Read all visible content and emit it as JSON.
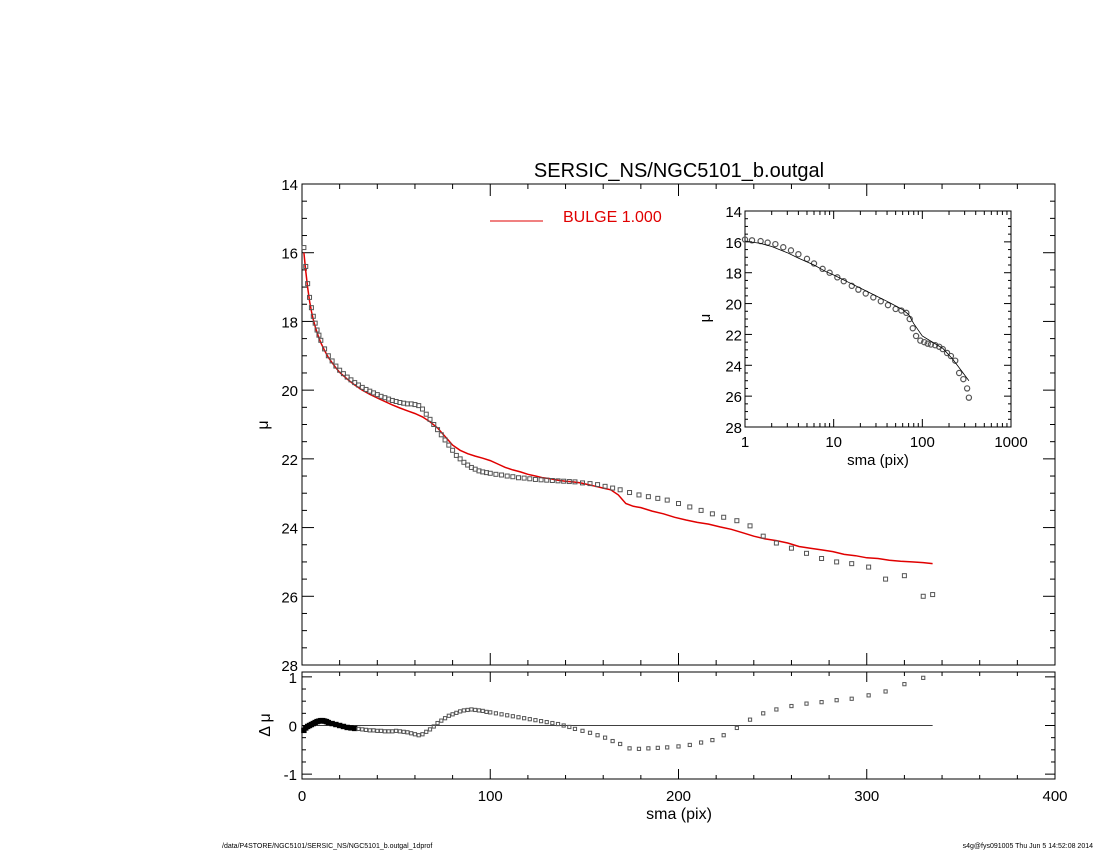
{
  "footer": {
    "left": "/data/P4STORE/NGC5101/SERSIC_NS/NGC5101_b.outgal_1dprof",
    "right": "s4g@fys091005  Thu Jun  5 14:52:08 2014"
  },
  "colors": {
    "model": "#e00000",
    "points": "#555555",
    "axes": "#000000"
  },
  "chart_data": [
    {
      "id": "main",
      "type": "scatter",
      "title": "SERSIC_NS/NGC5101_b.outgal",
      "xlabel": "",
      "ylabel": "μ",
      "xlim": [
        0,
        400
      ],
      "ylim": [
        28,
        14
      ],
      "y_inverted": true,
      "xticks": [
        0,
        100,
        200,
        300,
        400
      ],
      "yticks": [
        14,
        16,
        18,
        20,
        22,
        24,
        26,
        28
      ],
      "ytick_labels": [
        "14",
        "16",
        "18",
        "20",
        "22",
        "24",
        "26",
        "28"
      ],
      "legend": {
        "position": "top-center",
        "entries": [
          {
            "name": "BULGE  1.000",
            "color": "#e00000"
          }
        ]
      },
      "series": [
        {
          "name": "data",
          "style": "open-squares",
          "x": [
            1,
            2,
            3,
            4,
            5,
            6,
            7,
            8,
            9,
            10,
            12,
            14,
            16,
            18,
            20,
            22,
            24,
            26,
            28,
            30,
            32,
            34,
            36,
            38,
            40,
            42,
            44,
            46,
            48,
            50,
            52,
            54,
            56,
            58,
            60,
            62,
            64,
            66,
            68,
            70,
            72,
            74,
            76,
            78,
            80,
            82,
            84,
            86,
            88,
            90,
            92,
            94,
            96,
            98,
            100,
            103,
            106,
            109,
            112,
            115,
            118,
            121,
            124,
            127,
            130,
            133,
            136,
            139,
            142,
            145,
            149,
            153,
            157,
            161,
            165,
            169,
            174,
            179,
            184,
            189,
            194,
            200,
            206,
            212,
            218,
            224,
            231,
            238,
            245,
            252,
            260,
            268,
            276,
            284,
            292,
            301,
            310,
            320,
            330,
            335
          ],
          "y": [
            15.85,
            16.4,
            16.9,
            17.3,
            17.6,
            17.85,
            18.05,
            18.25,
            18.4,
            18.55,
            18.8,
            19.0,
            19.15,
            19.3,
            19.42,
            19.52,
            19.62,
            19.7,
            19.78,
            19.85,
            19.92,
            19.98,
            20.03,
            20.08,
            20.13,
            20.18,
            20.22,
            20.26,
            20.3,
            20.33,
            20.36,
            20.38,
            20.4,
            20.4,
            20.42,
            20.45,
            20.55,
            20.7,
            20.85,
            21.0,
            21.15,
            21.3,
            21.45,
            21.6,
            21.75,
            21.9,
            22.0,
            22.1,
            22.18,
            22.25,
            22.3,
            22.35,
            22.38,
            22.4,
            22.42,
            22.45,
            22.47,
            22.5,
            22.52,
            22.55,
            22.56,
            22.58,
            22.6,
            22.61,
            22.62,
            22.63,
            22.64,
            22.65,
            22.66,
            22.67,
            22.7,
            22.72,
            22.75,
            22.8,
            22.85,
            22.9,
            22.98,
            23.05,
            23.1,
            23.15,
            23.2,
            23.3,
            23.4,
            23.5,
            23.6,
            23.7,
            23.8,
            23.95,
            24.25,
            24.45,
            24.6,
            24.75,
            24.9,
            25.0,
            25.05,
            25.15,
            25.5,
            25.4,
            26.0,
            25.95
          ],
          "note": ""
        },
        {
          "name": "BULGE  1.000",
          "style": "line",
          "color": "#e00000",
          "x": [
            1,
            2,
            3,
            4,
            5,
            6,
            7,
            8,
            9,
            10,
            12,
            14,
            16,
            18,
            20,
            24,
            28,
            32,
            36,
            40,
            44,
            48,
            52,
            56,
            60,
            64,
            68,
            72,
            76,
            80,
            84,
            88,
            92,
            96,
            100,
            104,
            108,
            112,
            116,
            120,
            124,
            128,
            132,
            136,
            140,
            144,
            148,
            152,
            156,
            160,
            164,
            168,
            172,
            176,
            180,
            186,
            192,
            198,
            204,
            210,
            216,
            222,
            228,
            234,
            240,
            246,
            252,
            258,
            264,
            270,
            276,
            282,
            288,
            294,
            300,
            306,
            312,
            318,
            324,
            330,
            335
          ],
          "y": [
            16.0,
            16.55,
            17.0,
            17.4,
            17.7,
            17.95,
            18.15,
            18.33,
            18.48,
            18.62,
            18.85,
            19.05,
            19.2,
            19.35,
            19.48,
            19.68,
            19.85,
            20.0,
            20.12,
            20.23,
            20.33,
            20.43,
            20.52,
            20.6,
            20.68,
            20.78,
            20.92,
            21.1,
            21.35,
            21.6,
            21.75,
            21.85,
            21.92,
            21.98,
            22.05,
            22.15,
            22.25,
            22.32,
            22.38,
            22.45,
            22.5,
            22.55,
            22.58,
            22.62,
            22.65,
            22.67,
            22.7,
            22.75,
            22.8,
            22.85,
            22.9,
            23.05,
            23.3,
            23.38,
            23.42,
            23.52,
            23.6,
            23.7,
            23.78,
            23.85,
            23.9,
            23.98,
            24.05,
            24.15,
            24.25,
            24.33,
            24.38,
            24.45,
            24.55,
            24.6,
            24.65,
            24.7,
            24.78,
            24.82,
            24.88,
            24.9,
            24.95,
            24.98,
            25.0,
            25.02,
            25.05
          ]
        }
      ]
    },
    {
      "id": "residual",
      "type": "scatter",
      "title": "",
      "xlabel": "sma (pix)",
      "ylabel": "Δ μ",
      "xlim": [
        0,
        400
      ],
      "ylim": [
        -1.1,
        1.1
      ],
      "xticks": [
        0,
        100,
        200,
        300,
        400
      ],
      "xtick_labels": [
        "0",
        "100",
        "200",
        "300",
        "400"
      ],
      "yticks": [
        1,
        0,
        -1
      ],
      "ytick_labels": [
        "1",
        "0",
        "-1"
      ],
      "zero_line": {
        "y": 0,
        "x_end": 335
      },
      "series": [
        {
          "name": "residual",
          "style": "open-squares",
          "x": [
            1,
            2,
            3,
            4,
            5,
            6,
            7,
            8,
            9,
            10,
            11,
            12,
            13,
            14,
            16,
            18,
            20,
            22,
            24,
            26,
            28,
            30,
            32,
            34,
            36,
            38,
            40,
            42,
            44,
            46,
            48,
            50,
            52,
            54,
            56,
            58,
            60,
            62,
            64,
            66,
            68,
            70,
            72,
            74,
            76,
            78,
            80,
            82,
            84,
            86,
            88,
            90,
            92,
            94,
            96,
            98,
            100,
            103,
            106,
            109,
            112,
            115,
            118,
            121,
            124,
            127,
            130,
            133,
            136,
            139,
            142,
            145,
            149,
            153,
            157,
            161,
            165,
            169,
            174,
            179,
            184,
            189,
            194,
            200,
            206,
            212,
            218,
            224,
            231,
            238,
            245,
            252,
            260,
            268,
            276,
            284,
            292,
            301,
            310,
            320,
            330
          ],
          "y": [
            -0.1,
            -0.05,
            -0.02,
            0.0,
            0.02,
            0.04,
            0.06,
            0.08,
            0.09,
            0.1,
            0.1,
            0.09,
            0.08,
            0.06,
            0.04,
            0.02,
            0.0,
            -0.02,
            -0.04,
            -0.05,
            -0.06,
            -0.07,
            -0.08,
            -0.09,
            -0.1,
            -0.1,
            -0.11,
            -0.11,
            -0.12,
            -0.12,
            -0.12,
            -0.11,
            -0.12,
            -0.13,
            -0.14,
            -0.16,
            -0.18,
            -0.2,
            -0.18,
            -0.13,
            -0.08,
            -0.02,
            0.05,
            0.1,
            0.15,
            0.2,
            0.23,
            0.26,
            0.29,
            0.31,
            0.32,
            0.33,
            0.32,
            0.31,
            0.3,
            0.28,
            0.27,
            0.25,
            0.23,
            0.21,
            0.19,
            0.17,
            0.15,
            0.13,
            0.11,
            0.09,
            0.07,
            0.05,
            0.03,
            0.0,
            -0.03,
            -0.07,
            -0.11,
            -0.15,
            -0.2,
            -0.25,
            -0.32,
            -0.38,
            -0.47,
            -0.48,
            -0.47,
            -0.46,
            -0.45,
            -0.43,
            -0.4,
            -0.35,
            -0.3,
            -0.2,
            -0.05,
            0.12,
            0.25,
            0.33,
            0.4,
            0.45,
            0.48,
            0.52,
            0.55,
            0.62,
            0.7,
            0.85,
            0.98
          ]
        }
      ]
    },
    {
      "id": "inset",
      "type": "scatter",
      "title": "",
      "xlabel": "sma (pix)",
      "ylabel": "μ",
      "x_scale": "log",
      "xlim": [
        1,
        1000
      ],
      "ylim": [
        28,
        14
      ],
      "y_inverted": true,
      "xticks": [
        1,
        10,
        100,
        1000
      ],
      "xtick_labels": [
        "1",
        "10",
        "100",
        "1000"
      ],
      "yticks": [
        14,
        16,
        18,
        20,
        22,
        24,
        26,
        28
      ],
      "ytick_labels": [
        "14",
        "16",
        "18",
        "20",
        "22",
        "24",
        "26",
        "28"
      ],
      "series": [
        {
          "name": "data",
          "style": "open-circles",
          "x": [
            1,
            1.2,
            1.5,
            1.8,
            2.2,
            2.7,
            3.3,
            4,
            5,
            6,
            7.5,
            9,
            11,
            13,
            16,
            19,
            23,
            28,
            34,
            41,
            50,
            58,
            66,
            72,
            78,
            85,
            95,
            105,
            115,
            125,
            140,
            155,
            170,
            190,
            210,
            235,
            260,
            290,
            320,
            335
          ],
          "y": [
            15.85,
            15.9,
            15.95,
            16.05,
            16.15,
            16.35,
            16.55,
            16.8,
            17.1,
            17.4,
            17.75,
            18.0,
            18.3,
            18.55,
            18.85,
            19.1,
            19.35,
            19.6,
            19.85,
            20.1,
            20.35,
            20.45,
            20.6,
            21.0,
            21.6,
            22.1,
            22.4,
            22.5,
            22.6,
            22.65,
            22.7,
            22.8,
            22.95,
            23.2,
            23.4,
            23.7,
            24.5,
            24.9,
            25.5,
            26.1
          ]
        },
        {
          "name": "model",
          "style": "line",
          "color": "#000000",
          "x": [
            1,
            1.5,
            2,
            3,
            4,
            6,
            8,
            10,
            15,
            20,
            30,
            40,
            50,
            60,
            70,
            80,
            100,
            130,
            170,
            220,
            280,
            335
          ],
          "y": [
            15.95,
            16.1,
            16.3,
            16.7,
            17.05,
            17.5,
            17.9,
            18.15,
            18.65,
            19.0,
            19.5,
            19.85,
            20.15,
            20.4,
            20.7,
            21.3,
            22.1,
            22.5,
            22.9,
            23.6,
            24.4,
            25.0
          ]
        }
      ]
    }
  ]
}
